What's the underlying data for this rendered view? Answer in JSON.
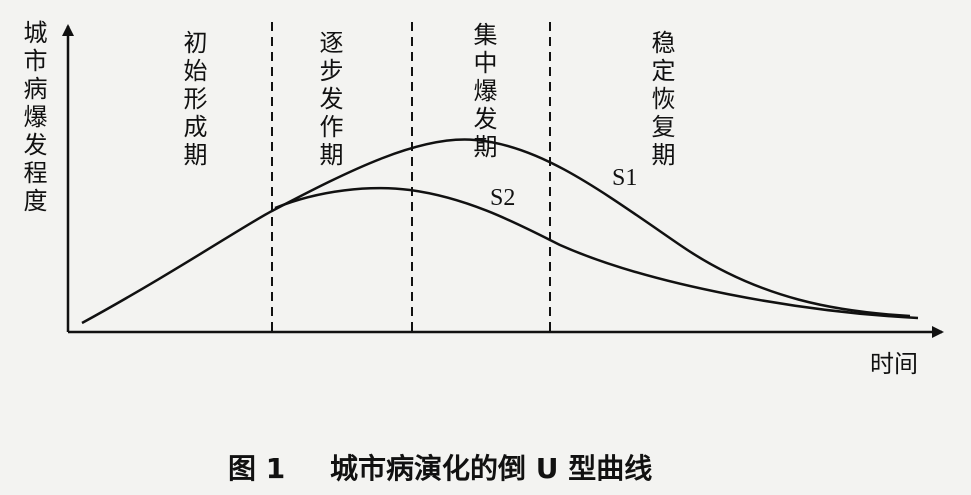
{
  "axes": {
    "y_label": "城市病爆发程度",
    "x_label": "时间"
  },
  "phases": [
    "初始形成期",
    "逐步发作期",
    "集中爆发期",
    "稳定恢复期"
  ],
  "curves": [
    "S1",
    "S2"
  ],
  "caption": {
    "label": "图 1",
    "text": "城市病演化的倒 U 型曲线"
  }
}
